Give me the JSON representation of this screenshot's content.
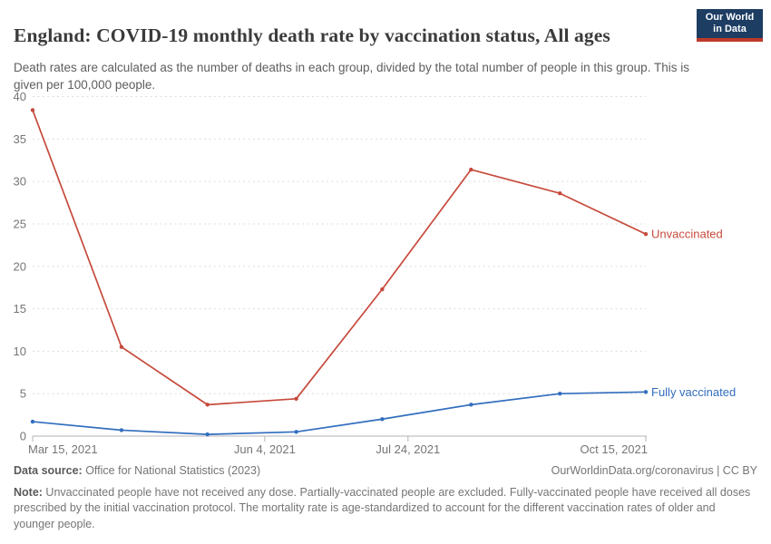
{
  "header": {
    "title": "England: COVID-19 monthly death rate by vaccination status, All ages",
    "subtitle": "Death rates are calculated as the number of deaths in each group, divided by the total number of people in this group. This is given per 100,000 people.",
    "logo": {
      "line1": "Our World",
      "line2": "in Data",
      "bg_color": "#1d3d63",
      "stripe_color": "#c0392b"
    }
  },
  "chart_data": {
    "type": "line",
    "title": "England: COVID-19 monthly death rate by vaccination status, All ages",
    "xlabel": "",
    "ylabel": "",
    "ylim": [
      0,
      40
    ],
    "y_ticks": [
      0,
      5,
      10,
      15,
      20,
      25,
      30,
      35,
      40
    ],
    "grid": "dashed horizontal gridlines, legend labels at line ends (right)",
    "x_dates": [
      "Mar 15, 2021",
      "Apr 15, 2021",
      "May 15, 2021",
      "Jun 15, 2021",
      "Jul 15, 2021",
      "Aug 15, 2021",
      "Sep 15, 2021",
      "Oct 15, 2021"
    ],
    "x_days": [
      0,
      31,
      61,
      92,
      122,
      153,
      184,
      214
    ],
    "x_axis_span_days": 214,
    "x_ticks": [
      {
        "label": "Mar 15, 2021",
        "day": 0,
        "anchor": "start"
      },
      {
        "label": "Jun 4, 2021",
        "day": 81,
        "anchor": "middle"
      },
      {
        "label": "Jul 24, 2021",
        "day": 131,
        "anchor": "middle"
      },
      {
        "label": "Oct 15, 2021",
        "day": 214,
        "anchor": "end"
      }
    ],
    "series": [
      {
        "name": "Unvaccinated",
        "color": "#c64a3c",
        "values": [
          38.4,
          10.5,
          3.7,
          4.4,
          17.3,
          31.4,
          28.6,
          23.8
        ]
      },
      {
        "name": "Fully vaccinated",
        "color": "#326ebe",
        "values": [
          1.7,
          0.7,
          0.2,
          0.5,
          2.0,
          3.7,
          5.0,
          5.2
        ]
      }
    ]
  },
  "footer": {
    "source_label": "Data source:",
    "source_text": " Office for National Statistics (2023)",
    "attribution": "OurWorldinData.org/coronavirus | CC BY",
    "note_label": "Note:",
    "note_text": " Unvaccinated people have not received any dose. Partially-vaccinated people are excluded. Fully-vaccinated people have received all doses prescribed by the initial vaccination protocol. The mortality rate is age-standardized to account for the different vaccination rates of older and younger people."
  }
}
